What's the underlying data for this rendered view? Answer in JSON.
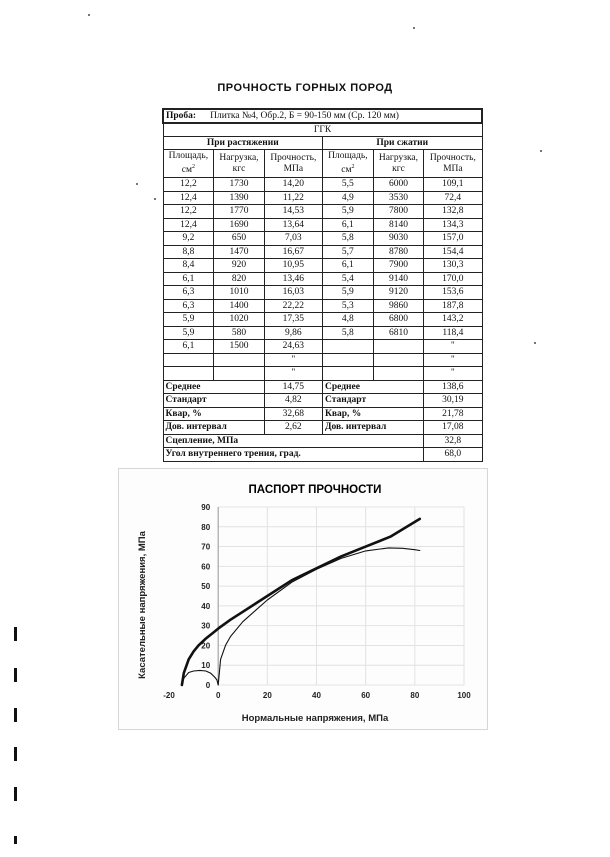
{
  "doc": {
    "title": "ПРОЧНОСТЬ ГОРНЫХ ПОРОД",
    "sample_label": "Проба:",
    "sample_value": "Плитка №4, Обр.2, Б = 90-150 мм (Ср. 120 мм)",
    "rock_type": "ГГК",
    "tension_header": "При растяжении",
    "compression_header": "При сжатии",
    "col_area": "Площадь, см²",
    "col_load": "Нагрузка, кгс",
    "col_strength": "Прочность, МПа",
    "rows": [
      [
        "12,2",
        "1730",
        "14,20",
        "5,5",
        "6000",
        "109,1"
      ],
      [
        "12,4",
        "1390",
        "11,22",
        "4,9",
        "3530",
        "72,4"
      ],
      [
        "12,2",
        "1770",
        "14,53",
        "5,9",
        "7800",
        "132,8"
      ],
      [
        "12,4",
        "1690",
        "13,64",
        "6,1",
        "8140",
        "134,3"
      ],
      [
        "9,2",
        "650",
        "7,03",
        "5,8",
        "9030",
        "157,0"
      ],
      [
        "8,8",
        "1470",
        "16,67",
        "5,7",
        "8780",
        "154,4"
      ],
      [
        "8,4",
        "920",
        "10,95",
        "6,1",
        "7900",
        "130,3"
      ],
      [
        "6,1",
        "820",
        "13,46",
        "5,4",
        "9140",
        "170,0"
      ],
      [
        "6,3",
        "1010",
        "16,03",
        "5,9",
        "9120",
        "153,6"
      ],
      [
        "6,3",
        "1400",
        "22,22",
        "5,3",
        "9860",
        "187,8"
      ],
      [
        "5,9",
        "1020",
        "17,35",
        "4,8",
        "6800",
        "143,2"
      ],
      [
        "5,9",
        "580",
        "9,86",
        "5,8",
        "6810",
        "118,4"
      ],
      [
        "6,1",
        "1500",
        "24,63",
        "",
        "",
        "\""
      ],
      [
        "",
        "",
        "\"",
        "",
        "",
        "\""
      ],
      [
        "",
        "",
        "\"",
        "",
        "",
        "\""
      ]
    ],
    "stats": [
      {
        "label": "Среднее",
        "t": "14,75",
        "c": "138,6"
      },
      {
        "label": "Стандарт",
        "t": "4,82",
        "c": "30,19"
      },
      {
        "label": "Квар, %",
        "t": "32,68",
        "c": "21,78"
      },
      {
        "label": "Дов. интервал",
        "t": "2,62",
        "c": "17,08"
      }
    ],
    "cohesion_label": "Сцепление, МПа",
    "cohesion_value": "32,8",
    "friction_label": "Угол внутреннего трения, град.",
    "friction_value": "68,0"
  },
  "chart_data": {
    "type": "line",
    "title": "ПАСПОРТ ПРОЧНОСТИ",
    "xlabel": "Нормальные напряжения, МПа",
    "ylabel": "Касательные напряжения, МПа",
    "xlim": [
      -20,
      100
    ],
    "ylim": [
      0,
      90
    ],
    "xticks": [
      -20,
      0,
      20,
      40,
      60,
      80,
      100
    ],
    "yticks": [
      0,
      10,
      20,
      30,
      40,
      50,
      60,
      70,
      80,
      90
    ],
    "grid": true,
    "series": [
      {
        "style": "envelope",
        "x": [
          -14.75,
          -14,
          -12,
          -10,
          -8,
          -5,
          -2,
          0,
          5,
          10,
          20,
          30,
          40,
          50,
          60,
          70,
          82
        ],
        "y": [
          0,
          6,
          13,
          17,
          20,
          23.5,
          26.5,
          28.5,
          33,
          37,
          45,
          53,
          59,
          65,
          70,
          75,
          84
        ]
      },
      {
        "style": "tension_circle",
        "x": [
          -14.75,
          -14,
          -12,
          -10,
          -7.4,
          -5,
          -3,
          -1.5,
          -0.5,
          0
        ],
        "y": [
          0,
          3.4,
          6.3,
          7.1,
          7.4,
          7.1,
          5.9,
          4.1,
          2.6,
          0
        ]
      },
      {
        "style": "compression_circle",
        "x": [
          0,
          1,
          3,
          5,
          10,
          20,
          30,
          40,
          50,
          60,
          69.3,
          75,
          80,
          82
        ],
        "y": [
          0,
          13,
          20,
          24.5,
          32,
          43,
          52,
          58.5,
          64,
          67.8,
          69.3,
          69.1,
          68.4,
          68
        ]
      }
    ]
  }
}
